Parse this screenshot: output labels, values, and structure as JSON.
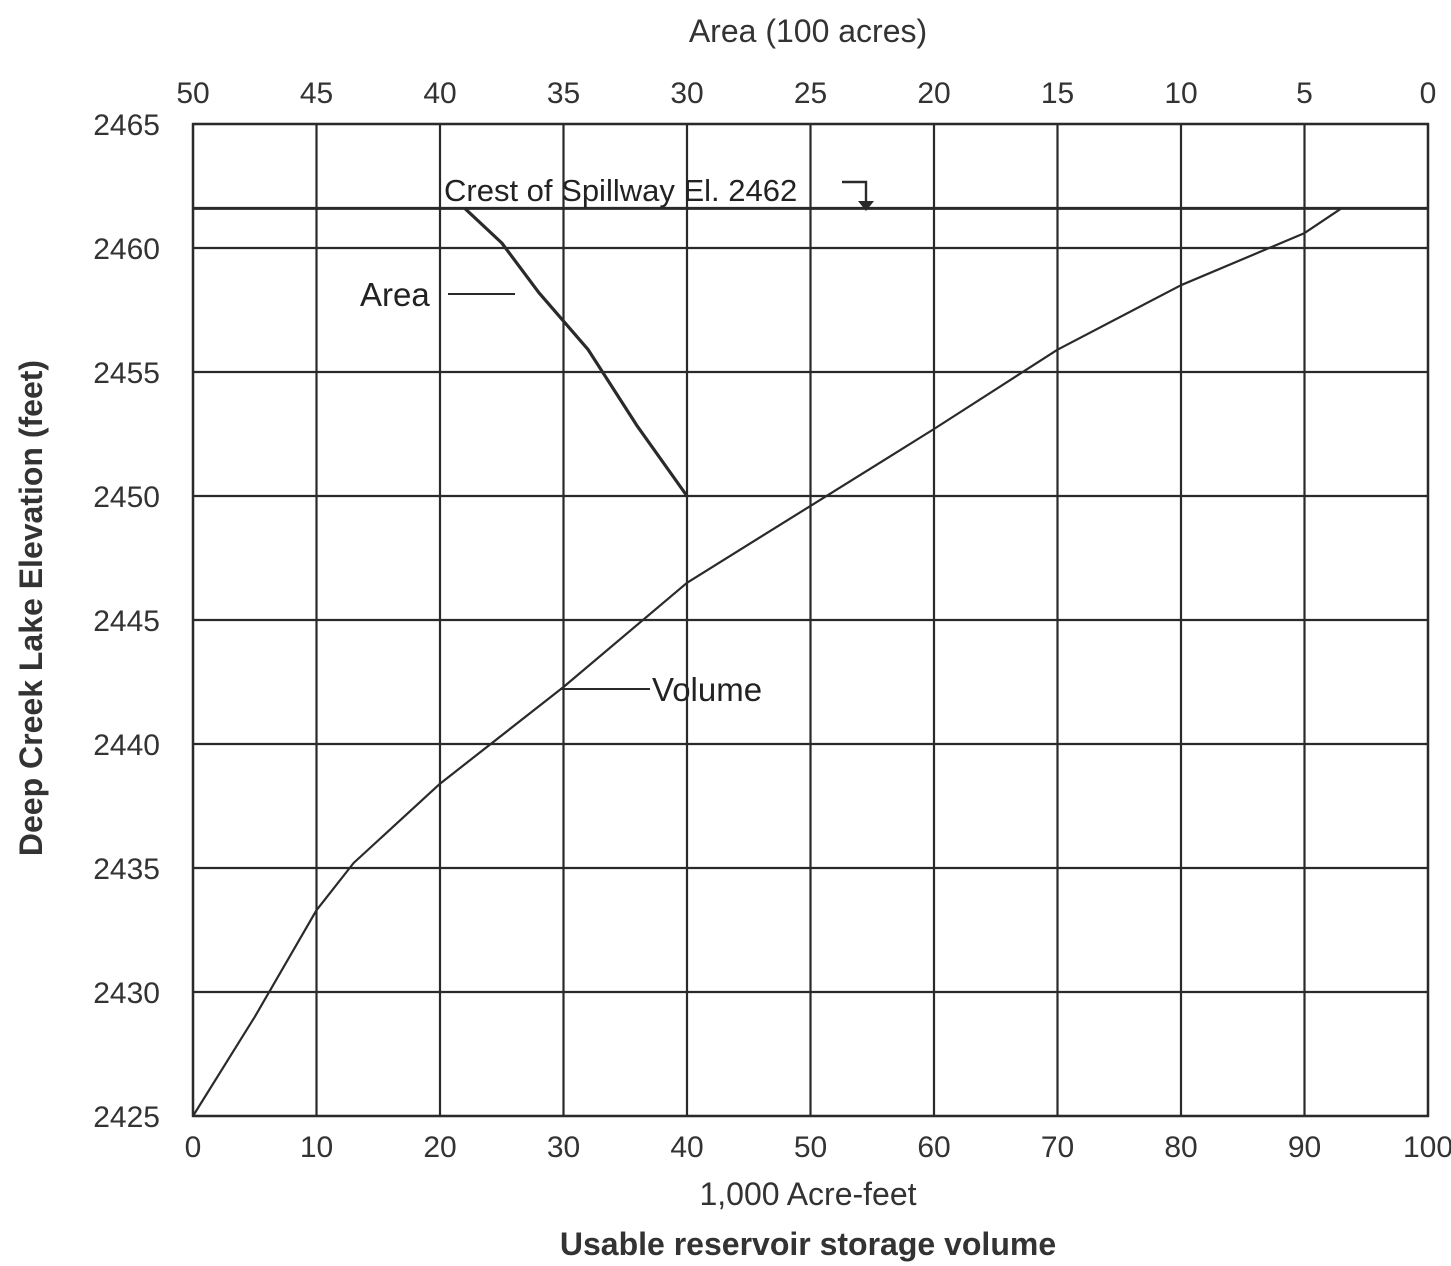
{
  "chart_data": {
    "type": "line",
    "title": "",
    "xlabel": "1,000 Acre-feet",
    "xlabel_secondary": "Usable reservoir storage volume",
    "ylabel": "Deep Creek Lake Elevation (feet)",
    "x2label": "Area (100 acres)",
    "xlim": [
      0,
      100
    ],
    "x2lim": [
      50,
      0
    ],
    "ylim": [
      2425,
      2465
    ],
    "x_ticks": [
      "0",
      "10",
      "20",
      "30",
      "40",
      "50",
      "60",
      "70",
      "80",
      "90",
      "100"
    ],
    "x2_ticks": [
      "50",
      "45",
      "40",
      "35",
      "30",
      "25",
      "20",
      "15",
      "10",
      "5",
      "0"
    ],
    "y_ticks": [
      "2425",
      "2430",
      "2435",
      "2440",
      "2445",
      "2450",
      "2455",
      "2460",
      "2465"
    ],
    "grid": true,
    "series": [
      {
        "name": "Volume",
        "axis": "bottom",
        "x": [
          0,
          5,
          10,
          13,
          20,
          30,
          40,
          50,
          60,
          70,
          80,
          90,
          93
        ],
        "y": [
          2425,
          2429,
          2433.3,
          2435.2,
          2438.4,
          2442.3,
          2446.5,
          2449.6,
          2452.7,
          2455.9,
          2458.5,
          2460.6,
          2461.6
        ]
      },
      {
        "name": "Area",
        "axis": "top",
        "x": [
          30,
          32,
          34,
          36,
          37.5,
          39
        ],
        "y": [
          2450,
          2452.8,
          2455.9,
          2458.2,
          2460.2,
          2461.6
        ]
      }
    ],
    "annotations": {
      "spillway": {
        "text": "Crest of Spillway El. 2462",
        "elevation": 2461.6
      },
      "area_label": "Area",
      "volume_label": "Volume"
    }
  }
}
